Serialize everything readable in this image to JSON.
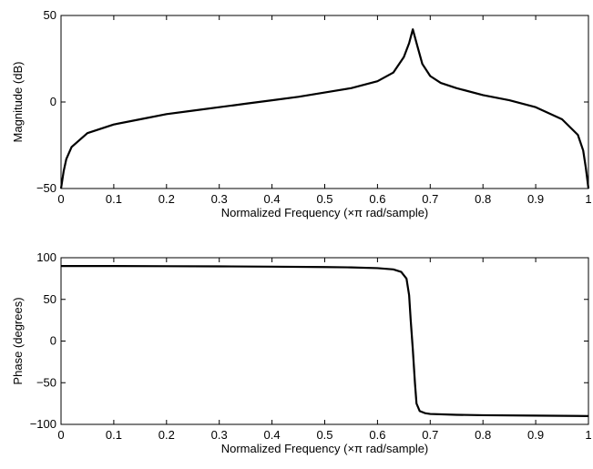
{
  "chart_data": [
    {
      "type": "line",
      "xlabel": "Normalized Frequency  (×π rad/sample)",
      "ylabel": "Magnitude (dB)",
      "xlim": [
        0,
        1
      ],
      "ylim": [
        -50,
        50
      ],
      "xticks": [
        "0",
        "0.1",
        "0.2",
        "0.3",
        "0.4",
        "0.5",
        "0.6",
        "0.7",
        "0.8",
        "0.9",
        "1"
      ],
      "yticks": [
        "50",
        "0",
        "−50"
      ],
      "grid": false,
      "series": [
        {
          "x": [
            0,
            0.005,
            0.01,
            0.02,
            0.05,
            0.1,
            0.15,
            0.2,
            0.25,
            0.3,
            0.35,
            0.4,
            0.45,
            0.5,
            0.55,
            0.6,
            0.63,
            0.65,
            0.66,
            0.667,
            0.675,
            0.685,
            0.7,
            0.72,
            0.75,
            0.8,
            0.85,
            0.9,
            0.95,
            0.98,
            0.99,
            0.995,
            1
          ],
          "values": [
            -50,
            -40,
            -33,
            -26,
            -18,
            -13,
            -10,
            -7,
            -5,
            -3,
            -1,
            1,
            3,
            5.5,
            8,
            12,
            17,
            26,
            34,
            42,
            33,
            22,
            15,
            11,
            8,
            4,
            1,
            -3,
            -10,
            -19,
            -28,
            -38,
            -50
          ]
        }
      ]
    },
    {
      "type": "line",
      "xlabel": "Normalized Frequency  (×π rad/sample)",
      "ylabel": "Phase (degrees)",
      "xlim": [
        0,
        1
      ],
      "ylim": [
        -100,
        100
      ],
      "xticks": [
        "0",
        "0.1",
        "0.2",
        "0.3",
        "0.4",
        "0.5",
        "0.6",
        "0.7",
        "0.8",
        "0.9",
        "1"
      ],
      "yticks": [
        "100",
        "50",
        "0",
        "−50",
        "−100"
      ],
      "grid": false,
      "series": [
        {
          "x": [
            0,
            0.1,
            0.2,
            0.3,
            0.4,
            0.5,
            0.55,
            0.6,
            0.63,
            0.645,
            0.655,
            0.66,
            0.663,
            0.667,
            0.671,
            0.674,
            0.68,
            0.69,
            0.7,
            0.75,
            0.8,
            0.9,
            1
          ],
          "values": [
            90,
            90,
            89.8,
            89.6,
            89.3,
            88.8,
            88.4,
            87.5,
            86,
            83,
            75,
            55,
            25,
            -10,
            -50,
            -75,
            -84,
            -86.5,
            -87.5,
            -88.5,
            -89,
            -89.5,
            -90
          ]
        }
      ]
    }
  ]
}
